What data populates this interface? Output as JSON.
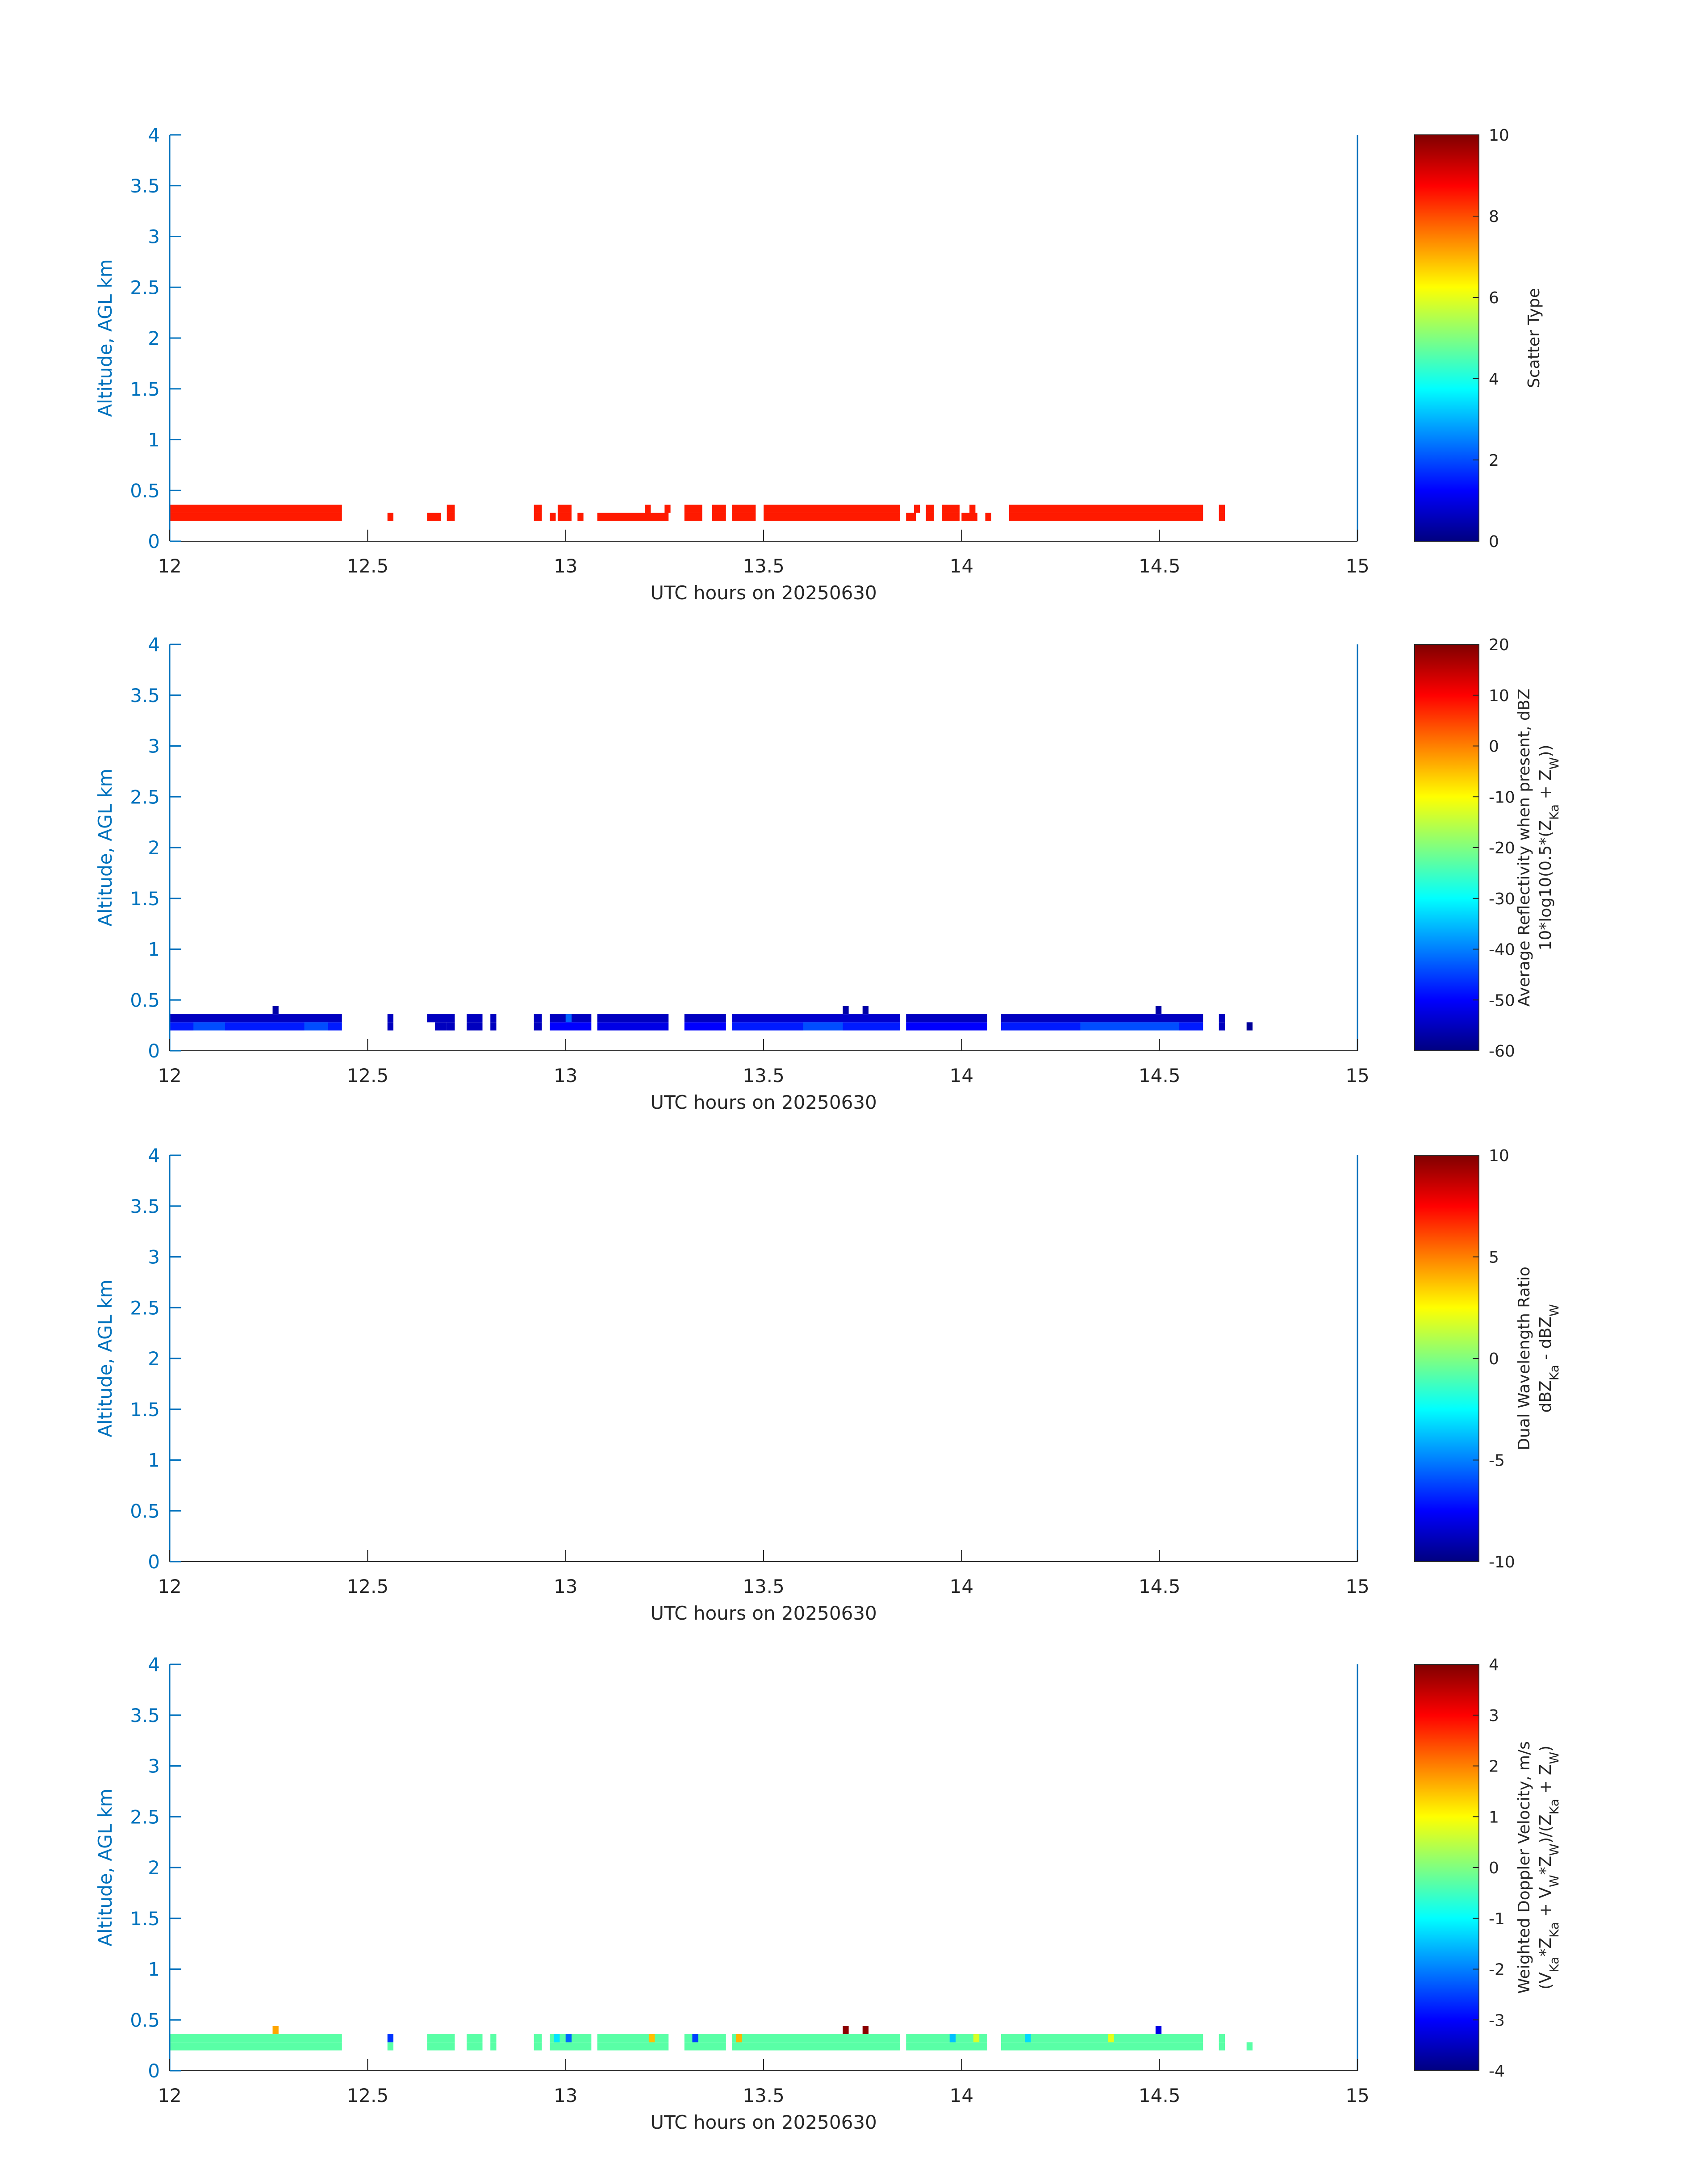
{
  "figure": {
    "date_label": "UTC hours on 20250630"
  },
  "chart_data": [
    {
      "type": "heatmap",
      "title": "",
      "xlabel": "UTC hours on 20250630",
      "ylabel": "Altitude, AGL km",
      "xlim": [
        12,
        15
      ],
      "ylim": [
        0,
        4
      ],
      "xticks": [
        "12",
        "12.5",
        "13",
        "13.5",
        "14",
        "14.5",
        "15"
      ],
      "yticks": [
        "0",
        "0.5",
        "1",
        "1.5",
        "2",
        "2.5",
        "3",
        "3.5",
        "4"
      ],
      "colorbar": {
        "label": "Scatter Type",
        "label2": "",
        "range": [
          0,
          10
        ],
        "ticks": [
          "0",
          "2",
          "4",
          "6",
          "8",
          "10"
        ]
      },
      "bin_height_km": 0.08,
      "cells": [
        [
          12.0,
          12.435,
          0.2,
          8.5
        ],
        [
          12.0,
          12.435,
          0.28,
          8.5
        ],
        [
          12.55,
          12.565,
          0.2,
          8.5
        ],
        [
          12.65,
          12.685,
          0.2,
          8.5
        ],
        [
          12.7,
          12.72,
          0.2,
          8.5
        ],
        [
          12.7,
          12.72,
          0.28,
          8.5
        ],
        [
          12.92,
          12.94,
          0.2,
          8.5
        ],
        [
          12.92,
          12.94,
          0.28,
          8.5
        ],
        [
          12.96,
          12.975,
          0.2,
          8.5
        ],
        [
          12.98,
          13.015,
          0.2,
          8.5
        ],
        [
          12.98,
          13.015,
          0.28,
          8.5
        ],
        [
          13.03,
          13.045,
          0.2,
          8.5
        ],
        [
          13.08,
          13.26,
          0.2,
          8.5
        ],
        [
          13.2,
          13.215,
          0.28,
          8.5
        ],
        [
          13.25,
          13.265,
          0.28,
          8.5
        ],
        [
          13.3,
          13.345,
          0.2,
          8.5
        ],
        [
          13.3,
          13.345,
          0.28,
          8.5
        ],
        [
          13.37,
          13.405,
          0.2,
          8.5
        ],
        [
          13.37,
          13.405,
          0.28,
          8.5
        ],
        [
          13.42,
          13.48,
          0.2,
          8.5
        ],
        [
          13.42,
          13.48,
          0.28,
          8.5
        ],
        [
          13.5,
          13.845,
          0.2,
          8.5
        ],
        [
          13.5,
          13.845,
          0.28,
          8.5
        ],
        [
          13.86,
          13.885,
          0.2,
          8.5
        ],
        [
          13.88,
          13.895,
          0.28,
          8.5
        ],
        [
          13.91,
          13.93,
          0.2,
          8.5
        ],
        [
          13.91,
          13.93,
          0.28,
          8.5
        ],
        [
          13.95,
          13.995,
          0.2,
          8.5
        ],
        [
          13.95,
          13.995,
          0.28,
          8.5
        ],
        [
          14.0,
          14.04,
          0.2,
          8.5
        ],
        [
          14.02,
          14.035,
          0.28,
          8.5
        ],
        [
          14.06,
          14.075,
          0.2,
          8.5
        ],
        [
          14.12,
          14.61,
          0.2,
          8.5
        ],
        [
          14.12,
          14.61,
          0.28,
          8.5
        ],
        [
          14.65,
          14.665,
          0.2,
          8.5
        ],
        [
          14.65,
          14.665,
          0.28,
          8.5
        ]
      ]
    },
    {
      "type": "heatmap",
      "title": "",
      "xlabel": "UTC hours on 20250630",
      "ylabel": "Altitude, AGL km",
      "xlim": [
        12,
        15
      ],
      "ylim": [
        0,
        4
      ],
      "xticks": [
        "12",
        "12.5",
        "13",
        "13.5",
        "14",
        "14.5",
        "15"
      ],
      "yticks": [
        "0",
        "0.5",
        "1",
        "1.5",
        "2",
        "2.5",
        "3",
        "3.5",
        "4"
      ],
      "colorbar": {
        "label": "Average Reflectivity when present, dBZ",
        "label2": "10*log10(0.5*(Z_Ka + Z_W))",
        "range": [
          -60,
          20
        ],
        "ticks": [
          "-60",
          "-50",
          "-40",
          "-30",
          "-20",
          "-10",
          "0",
          "10",
          "20"
        ]
      },
      "bin_height_km": 0.08,
      "cells": [
        [
          12.0,
          12.435,
          0.2,
          -48
        ],
        [
          12.0,
          12.435,
          0.28,
          -55
        ],
        [
          12.06,
          12.14,
          0.2,
          -44
        ],
        [
          12.34,
          12.4,
          0.2,
          -44
        ],
        [
          12.26,
          12.275,
          0.36,
          -57
        ],
        [
          12.55,
          12.565,
          0.2,
          -55
        ],
        [
          12.55,
          12.565,
          0.28,
          -55
        ],
        [
          12.65,
          12.72,
          0.28,
          -55
        ],
        [
          12.67,
          12.7,
          0.2,
          -55
        ],
        [
          12.7,
          12.72,
          0.2,
          -55
        ],
        [
          12.75,
          12.79,
          0.2,
          -55
        ],
        [
          12.75,
          12.79,
          0.28,
          -55
        ],
        [
          12.81,
          12.825,
          0.2,
          -55
        ],
        [
          12.81,
          12.825,
          0.28,
          -55
        ],
        [
          12.92,
          12.94,
          0.2,
          -55
        ],
        [
          12.92,
          12.94,
          0.28,
          -55
        ],
        [
          12.96,
          13.065,
          0.2,
          -50
        ],
        [
          12.96,
          13.065,
          0.28,
          -55
        ],
        [
          13.0,
          13.015,
          0.28,
          -42
        ],
        [
          13.08,
          13.26,
          0.2,
          -52
        ],
        [
          13.08,
          13.26,
          0.28,
          -55
        ],
        [
          13.3,
          13.405,
          0.2,
          -50
        ],
        [
          13.3,
          13.405,
          0.28,
          -55
        ],
        [
          13.42,
          13.845,
          0.2,
          -48
        ],
        [
          13.42,
          13.845,
          0.28,
          -54
        ],
        [
          13.6,
          13.7,
          0.2,
          -44
        ],
        [
          13.7,
          13.715,
          0.36,
          -57
        ],
        [
          13.75,
          13.765,
          0.36,
          -57
        ],
        [
          13.86,
          14.065,
          0.2,
          -50
        ],
        [
          13.86,
          14.065,
          0.28,
          -55
        ],
        [
          14.1,
          14.61,
          0.2,
          -48
        ],
        [
          14.1,
          14.61,
          0.28,
          -55
        ],
        [
          14.3,
          14.55,
          0.2,
          -44
        ],
        [
          14.49,
          14.505,
          0.36,
          -57
        ],
        [
          14.65,
          14.665,
          0.2,
          -55
        ],
        [
          14.65,
          14.665,
          0.28,
          -55
        ],
        [
          14.72,
          14.735,
          0.2,
          -58
        ]
      ]
    },
    {
      "type": "heatmap",
      "title": "",
      "xlabel": "UTC hours on 20250630",
      "ylabel": "Altitude, AGL km",
      "xlim": [
        12,
        15
      ],
      "ylim": [
        0,
        4
      ],
      "xticks": [
        "12",
        "12.5",
        "13",
        "13.5",
        "14",
        "14.5",
        "15"
      ],
      "yticks": [
        "0",
        "0.5",
        "1",
        "1.5",
        "2",
        "2.5",
        "3",
        "3.5",
        "4"
      ],
      "colorbar": {
        "label": "Dual Wavelength Ratio",
        "label2": "dBZ_Ka - dBZ_W",
        "range": [
          -10,
          10
        ],
        "ticks": [
          "-10",
          "-5",
          "0",
          "5",
          "10"
        ]
      },
      "bin_height_km": 0.08,
      "cells": []
    },
    {
      "type": "heatmap",
      "title": "",
      "xlabel": "UTC hours on 20250630",
      "ylabel": "Altitude, AGL km",
      "xlim": [
        12,
        15
      ],
      "ylim": [
        0,
        4
      ],
      "xticks": [
        "12",
        "12.5",
        "13",
        "13.5",
        "14",
        "14.5",
        "15"
      ],
      "yticks": [
        "0",
        "0.5",
        "1",
        "1.5",
        "2",
        "2.5",
        "3",
        "3.5",
        "4"
      ],
      "colorbar": {
        "label": "Weighted Doppler Velocity, m/s",
        "label2": "(V_Ka*Z_Ka + V_W*Z_W)/(Z_Ka + Z_W)",
        "range": [
          -4,
          4
        ],
        "ticks": [
          "-4",
          "-3",
          "-2",
          "-1",
          "0",
          "1",
          "2",
          "3",
          "4"
        ]
      },
      "bin_height_km": 0.08,
      "cells": [
        [
          12.0,
          12.435,
          0.2,
          -0.3
        ],
        [
          12.0,
          12.435,
          0.28,
          -0.3
        ],
        [
          12.26,
          12.275,
          0.36,
          1.7
        ],
        [
          12.55,
          12.565,
          0.2,
          -0.3
        ],
        [
          12.55,
          12.565,
          0.28,
          -2.6
        ],
        [
          12.65,
          12.72,
          0.2,
          -0.3
        ],
        [
          12.65,
          12.72,
          0.28,
          -0.3
        ],
        [
          12.75,
          12.79,
          0.2,
          -0.3
        ],
        [
          12.75,
          12.79,
          0.28,
          -0.3
        ],
        [
          12.81,
          12.825,
          0.2,
          -0.3
        ],
        [
          12.81,
          12.825,
          0.28,
          -0.3
        ],
        [
          12.92,
          12.94,
          0.2,
          -0.3
        ],
        [
          12.92,
          12.94,
          0.28,
          -0.3
        ],
        [
          12.96,
          13.065,
          0.2,
          -0.3
        ],
        [
          12.96,
          13.065,
          0.28,
          -0.3
        ],
        [
          13.0,
          13.015,
          0.28,
          -2.2
        ],
        [
          12.97,
          12.985,
          0.28,
          -1.2
        ],
        [
          13.08,
          13.26,
          0.2,
          -0.3
        ],
        [
          13.08,
          13.26,
          0.28,
          -0.3
        ],
        [
          13.21,
          13.225,
          0.28,
          1.5
        ],
        [
          13.3,
          13.405,
          0.2,
          -0.3
        ],
        [
          13.3,
          13.405,
          0.28,
          -0.3
        ],
        [
          13.32,
          13.335,
          0.28,
          -2.5
        ],
        [
          13.42,
          13.845,
          0.2,
          -0.3
        ],
        [
          13.42,
          13.845,
          0.28,
          -0.3
        ],
        [
          13.43,
          13.445,
          0.28,
          1.6
        ],
        [
          13.7,
          13.715,
          0.36,
          3.9
        ],
        [
          13.75,
          13.765,
          0.36,
          3.9
        ],
        [
          13.86,
          14.065,
          0.2,
          -0.3
        ],
        [
          13.86,
          14.065,
          0.28,
          -0.3
        ],
        [
          13.97,
          13.985,
          0.28,
          -1.5
        ],
        [
          14.03,
          14.045,
          0.28,
          0.7
        ],
        [
          14.1,
          14.61,
          0.2,
          -0.3
        ],
        [
          14.1,
          14.61,
          0.28,
          -0.3
        ],
        [
          14.16,
          14.175,
          0.28,
          -1.3
        ],
        [
          14.37,
          14.385,
          0.28,
          0.8
        ],
        [
          14.49,
          14.505,
          0.36,
          -3.2
        ],
        [
          14.65,
          14.665,
          0.2,
          -0.3
        ],
        [
          14.65,
          14.665,
          0.28,
          -0.3
        ],
        [
          14.72,
          14.735,
          0.2,
          -0.3
        ]
      ]
    }
  ]
}
